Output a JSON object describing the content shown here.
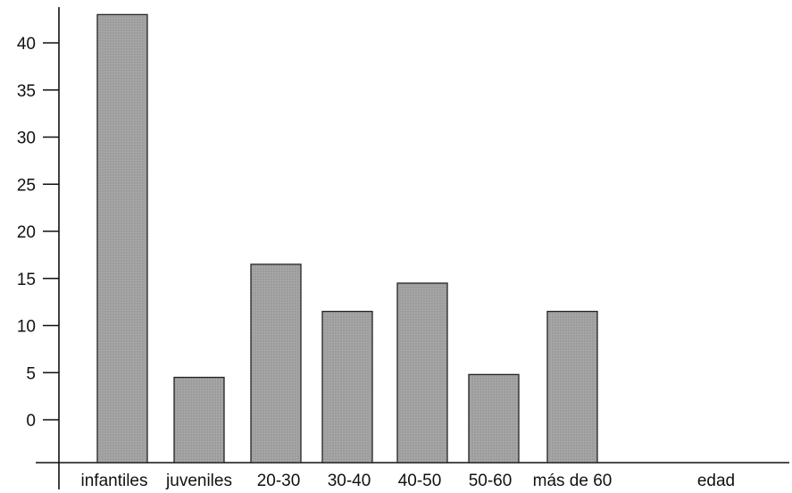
{
  "chart_data": {
    "type": "bar",
    "title": "",
    "xlabel": "edad",
    "ylabel": "",
    "categories": [
      "infantiles",
      "juveniles",
      "20-30",
      "30-40",
      "40-50",
      "50-60",
      "más de 60"
    ],
    "values": [
      43,
      4.5,
      16.5,
      11.5,
      14.5,
      4.8,
      11.5
    ],
    "ylim": [
      -5,
      43
    ],
    "yticks": [
      0,
      5,
      10,
      15,
      20,
      25,
      30,
      35,
      40
    ],
    "grid": false,
    "bar_color": "#9a9a9a"
  }
}
